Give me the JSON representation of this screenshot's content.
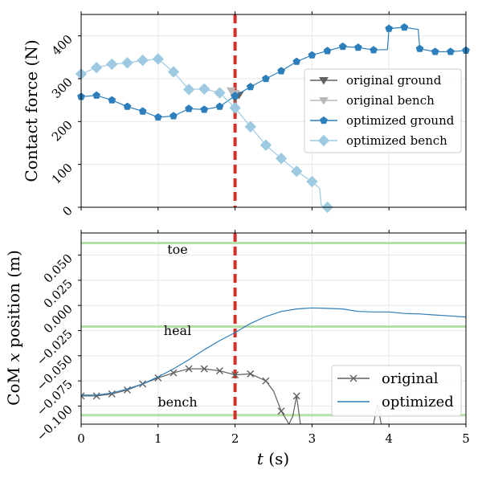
{
  "colors": {
    "original": "#606060",
    "original_bench": "#b8b8b8",
    "optimized_ground": "#2d7fbc",
    "optimized_bench": "#9ecae1",
    "vline": "#d03028",
    "hline": "#b7dfa8",
    "grid": "#e8e8e8"
  },
  "chart_data": [
    {
      "type": "line",
      "title": "",
      "xlabel": "",
      "ylabel": "Contact force (N)",
      "xlim": [
        0,
        5
      ],
      "ylim": [
        0,
        450
      ],
      "xticks": [
        0,
        1,
        2,
        3,
        4,
        5
      ],
      "yticks": [
        0,
        100,
        200,
        300,
        400
      ],
      "ytick_labels": [
        "0",
        "100",
        "200",
        "300",
        "400"
      ],
      "grid": true,
      "vline_x": 2,
      "legend": {
        "position": "right",
        "entries": [
          "original ground",
          "original bench",
          "optimized ground",
          "optimized bench"
        ]
      },
      "series": [
        {
          "name": "original ground",
          "marker": "triangle-down",
          "x": [
            2.0,
            2.05
          ],
          "y": [
            255,
            262
          ]
        },
        {
          "name": "original bench",
          "marker": "triangle-down",
          "x": [
            1.95,
            2.0
          ],
          "y": [
            272,
            266
          ]
        },
        {
          "name": "optimized ground",
          "marker": "pentagon",
          "x": [
            0,
            0.2,
            0.4,
            0.6,
            0.8,
            1.0,
            1.2,
            1.4,
            1.6,
            1.8,
            2.0,
            2.2,
            2.4,
            2.6,
            2.8,
            3.0,
            3.2,
            3.4,
            3.6,
            3.8,
            3.98,
            4.0,
            4.2,
            4.38,
            4.4,
            4.6,
            4.8,
            5.0
          ],
          "y": [
            258,
            261,
            250,
            235,
            224,
            210,
            213,
            230,
            228,
            235,
            260,
            281,
            300,
            318,
            340,
            355,
            365,
            375,
            373,
            367,
            368,
            417,
            420,
            415,
            370,
            363,
            363,
            366
          ]
        },
        {
          "name": "optimized bench",
          "marker": "diamond",
          "x": [
            0,
            0.2,
            0.4,
            0.6,
            0.8,
            1.0,
            1.2,
            1.4,
            1.6,
            1.8,
            2.0,
            2.2,
            2.4,
            2.6,
            2.8,
            3.0,
            3.1,
            3.12,
            3.2
          ],
          "y": [
            311,
            326,
            334,
            337,
            343,
            346,
            316,
            275,
            276,
            267,
            232,
            188,
            145,
            114,
            84,
            60,
            44,
            4,
            0
          ]
        }
      ]
    },
    {
      "type": "line",
      "title": "",
      "xlabel": "t (s)",
      "ylabel": "CoM x position (m)",
      "xlim": [
        0,
        5
      ],
      "ylim": [
        -0.118,
        0.072
      ],
      "xticks": [
        0,
        1,
        2,
        3,
        4,
        5
      ],
      "yticks": [
        -0.1,
        -0.075,
        -0.05,
        -0.025,
        0.0,
        0.025,
        0.05
      ],
      "ytick_labels": [
        "−0.100",
        "−0.075",
        "−0.050",
        "−0.025",
        "0.000",
        "0.025",
        "0.050"
      ],
      "grid": true,
      "vline_x": 2,
      "hlines": [
        {
          "y": 0.062,
          "label": "toe"
        },
        {
          "y": -0.021,
          "label": "heal"
        },
        {
          "y": -0.109,
          "label": "bench"
        }
      ],
      "legend": {
        "position": "bottom-right",
        "entries": [
          "original",
          "optimized"
        ]
      },
      "series": [
        {
          "name": "original",
          "marker": "x",
          "x": [
            0,
            0.2,
            0.4,
            0.6,
            0.8,
            1.0,
            1.2,
            1.4,
            1.6,
            1.8,
            2.0,
            2.2,
            2.4,
            2.5,
            2.6,
            2.7,
            2.75,
            2.8,
            2.85,
            2.9,
            2.95,
            3.0,
            3.05,
            3.1,
            3.15,
            3.2,
            3.25,
            3.3,
            3.35,
            3.4,
            3.5,
            3.7,
            3.8,
            3.85,
            3.9,
            3.95,
            4.0
          ],
          "y": [
            -0.09,
            -0.09,
            -0.088,
            -0.084,
            -0.078,
            -0.072,
            -0.067,
            -0.063,
            -0.063,
            -0.065,
            -0.069,
            -0.068,
            -0.075,
            -0.085,
            -0.105,
            -0.118,
            -0.11,
            -0.09,
            -0.118,
            -0.118,
            -0.118,
            -0.118,
            -0.118,
            -0.118,
            -0.118,
            -0.118,
            -0.118,
            -0.118,
            -0.118,
            -0.118,
            -0.118,
            -0.118,
            -0.118,
            -0.098,
            -0.118,
            -0.118,
            -0.118
          ]
        },
        {
          "name": "optimized",
          "marker": "none",
          "x": [
            0,
            0.2,
            0.4,
            0.6,
            0.8,
            1.0,
            1.2,
            1.4,
            1.6,
            1.8,
            2.0,
            2.2,
            2.4,
            2.6,
            2.8,
            3.0,
            3.2,
            3.4,
            3.6,
            3.8,
            4.0,
            4.2,
            4.4,
            4.6,
            4.8,
            5.0
          ],
          "y": [
            -0.089,
            -0.089,
            -0.087,
            -0.083,
            -0.078,
            -0.071,
            -0.063,
            -0.054,
            -0.044,
            -0.035,
            -0.027,
            -0.018,
            -0.011,
            -0.006,
            -0.0035,
            -0.0025,
            -0.003,
            -0.0035,
            -0.006,
            -0.0065,
            -0.0065,
            -0.008,
            -0.0085,
            -0.0095,
            -0.0105,
            -0.0115
          ]
        }
      ]
    }
  ],
  "labels": {
    "ylabel1": "Contact force (N)",
    "ylabel2_pre": "CoM ",
    "ylabel2_var": "x",
    "ylabel2_post": " position (m)",
    "xlabel_var": "t",
    "xlabel_post": " (s)",
    "toe": "toe",
    "heal": "heal",
    "bench": "bench",
    "xtick_0": "0",
    "xtick_1": "1",
    "xtick_2": "2",
    "xtick_3": "3",
    "xtick_4": "4",
    "xtick_5": "5"
  }
}
